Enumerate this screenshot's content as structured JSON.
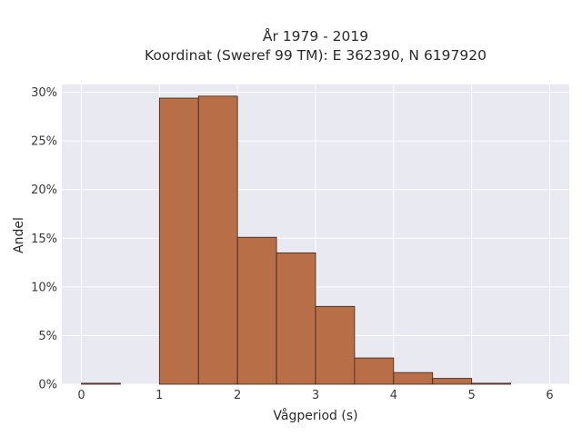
{
  "chart_data": {
    "type": "bar",
    "title_lines": [
      "År 1979 - 2019",
      "Koordinat (Sweref 99 TM): E 362390, N 6197920"
    ],
    "xlabel": "Vågperiod (s)",
    "ylabel": "Andel",
    "bin_width": 0.5,
    "bins": [
      {
        "start": 0.0,
        "value": 0.1
      },
      {
        "start": 0.5,
        "value": 0.0
      },
      {
        "start": 1.0,
        "value": 29.4
      },
      {
        "start": 1.5,
        "value": 29.6
      },
      {
        "start": 2.0,
        "value": 15.1
      },
      {
        "start": 2.5,
        "value": 13.5
      },
      {
        "start": 3.0,
        "value": 8.0
      },
      {
        "start": 3.5,
        "value": 2.7
      },
      {
        "start": 4.0,
        "value": 1.2
      },
      {
        "start": 4.5,
        "value": 0.6
      },
      {
        "start": 5.0,
        "value": 0.1
      },
      {
        "start": 5.5,
        "value": 0.0
      }
    ],
    "xlim": [
      -0.25,
      6.25
    ],
    "ylim": [
      0,
      30.8
    ],
    "xticks": [
      0,
      1,
      2,
      3,
      4,
      5,
      6
    ],
    "xtick_labels": [
      "0",
      "1",
      "2",
      "3",
      "4",
      "5",
      "6"
    ],
    "yticks": [
      0,
      5,
      10,
      15,
      20,
      25,
      30
    ],
    "ytick_labels": [
      "0%",
      "5%",
      "10%",
      "15%",
      "20%",
      "25%",
      "30%"
    ],
    "grid": true,
    "colors": {
      "bar_fill": "#b86e47",
      "bar_edge": "#3a2418",
      "plot_background": "#e9e9f1",
      "grid": "#ffffff"
    }
  }
}
